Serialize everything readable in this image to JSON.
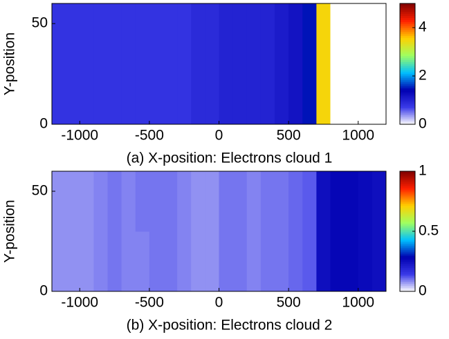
{
  "chart_data": [
    {
      "type": "heatmap",
      "xlabel": "(a) X-position: Electrons cloud 1",
      "ylabel": "Y-position",
      "xbins": [
        -1200,
        -1100,
        -1000,
        -900,
        -800,
        -700,
        -600,
        -500,
        -400,
        -300,
        -200,
        -100,
        0,
        100,
        200,
        300,
        400,
        500,
        600,
        700,
        800,
        900,
        1000,
        1100,
        1200
      ],
      "ybins": [
        0,
        30,
        60
      ],
      "z": [
        [
          0.8,
          0.8,
          0.8,
          0.8,
          0.8,
          0.8,
          0.8,
          0.8,
          0.8,
          0.8,
          0.9,
          0.9,
          1.0,
          1.0,
          1.0,
          1.0,
          1.1,
          1.2,
          1.5,
          3.5,
          0,
          0,
          0,
          0
        ],
        [
          0.8,
          0.8,
          0.8,
          0.8,
          0.8,
          0.8,
          0.8,
          0.8,
          0.8,
          0.8,
          0.9,
          0.9,
          1.0,
          1.0,
          1.0,
          1.0,
          1.1,
          1.2,
          1.5,
          3.5,
          0,
          0,
          0,
          0
        ]
      ],
      "xlim": [
        -1200,
        1200
      ],
      "xticks": [
        -1000,
        -500,
        0,
        500,
        1000
      ],
      "ylim": [
        0,
        60
      ],
      "yticks": [
        0,
        50
      ],
      "clim": [
        0,
        5
      ],
      "cticks": [
        0,
        2,
        4
      ],
      "colormap": [
        "#ffffff",
        "#3a3ae8",
        "#0000b0",
        "#00c0ff",
        "#a0ff60",
        "#ffd000",
        "#ff2000",
        "#800000"
      ]
    },
    {
      "type": "heatmap",
      "xlabel": "(b) X-position: Electrons cloud 2",
      "ylabel": "Y-position",
      "xbins": [
        -1200,
        -1100,
        -1000,
        -900,
        -800,
        -700,
        -600,
        -500,
        -400,
        -300,
        -200,
        -100,
        0,
        100,
        200,
        300,
        400,
        500,
        600,
        700,
        800,
        900,
        1000,
        1100,
        1200
      ],
      "ybins": [
        0,
        30,
        60
      ],
      "z": [
        [
          0.08,
          0.08,
          0.08,
          0.09,
          0.1,
          0.09,
          0.09,
          0.1,
          0.1,
          0.09,
          0.08,
          0.08,
          0.1,
          0.1,
          0.09,
          0.1,
          0.1,
          0.11,
          0.12,
          0.25,
          0.27,
          0.27,
          0.26,
          0.25
        ],
        [
          0.08,
          0.08,
          0.08,
          0.09,
          0.1,
          0.09,
          0.1,
          0.1,
          0.1,
          0.09,
          0.08,
          0.08,
          0.1,
          0.1,
          0.09,
          0.1,
          0.1,
          0.11,
          0.12,
          0.25,
          0.27,
          0.27,
          0.26,
          0.25
        ]
      ],
      "xlim": [
        -1200,
        1200
      ],
      "xticks": [
        -1000,
        -500,
        0,
        500,
        1000
      ],
      "ylim": [
        0,
        60
      ],
      "yticks": [
        0,
        50
      ],
      "clim": [
        0,
        1
      ],
      "cticks": [
        0,
        0.5,
        1
      ],
      "colormap": [
        "#ffffff",
        "#3a3ae8",
        "#0000b0",
        "#00c0ff",
        "#a0ff60",
        "#ffd000",
        "#ff2000",
        "#800000"
      ]
    }
  ]
}
